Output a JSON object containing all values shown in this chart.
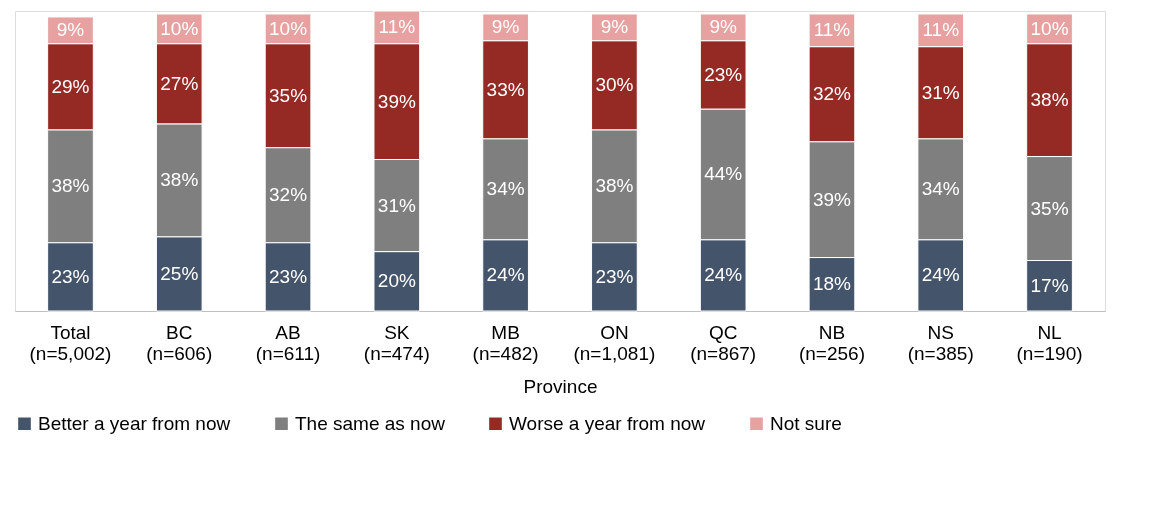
{
  "chart_data": {
    "type": "bar",
    "stacked": true,
    "xlabel": "Province",
    "legend": "bottom",
    "grid": false,
    "categories": [
      "Total (n=5,002)",
      "BC (n=606)",
      "AB (n=611)",
      "SK (n=474)",
      "MB (n=482)",
      "ON (n=1,081)",
      "QC (n=867)",
      "NB (n=256)",
      "NS (n=385)",
      "NL (n=190)"
    ],
    "series": [
      {
        "name": "Better a year from now",
        "color": "#44546a",
        "values": [
          23,
          25,
          23,
          20,
          24,
          23,
          24,
          18,
          24,
          17
        ],
        "value_labels": [
          "23%",
          "25%",
          "23%",
          "20%",
          "24%",
          "23%",
          "24%",
          "18%",
          "24%",
          "17%"
        ]
      },
      {
        "name": "The same as now",
        "color": "#7f7f7f",
        "values": [
          38,
          38,
          32,
          31,
          34,
          38,
          44,
          39,
          34,
          35
        ],
        "value_labels": [
          "38%",
          "38%",
          "32%",
          "31%",
          "34%",
          "38%",
          "44%",
          "39%",
          "34%",
          "35%"
        ]
      },
      {
        "name": "Worse a year from now",
        "color": "#952a25",
        "values": [
          29,
          27,
          35,
          39,
          33,
          30,
          23,
          32,
          31,
          38
        ],
        "value_labels": [
          "29%",
          "27%",
          "35%",
          "39%",
          "33%",
          "30%",
          "23%",
          "32%",
          "31%",
          "38%"
        ]
      },
      {
        "name": "Not sure",
        "color": "#e6a1a0",
        "values": [
          9,
          10,
          10,
          11,
          9,
          9,
          9,
          11,
          11,
          10
        ],
        "value_labels": [
          "9%",
          "10%",
          "10%",
          "11%",
          "9%",
          "9%",
          "9%",
          "11%",
          "11%",
          "10%"
        ]
      }
    ]
  }
}
